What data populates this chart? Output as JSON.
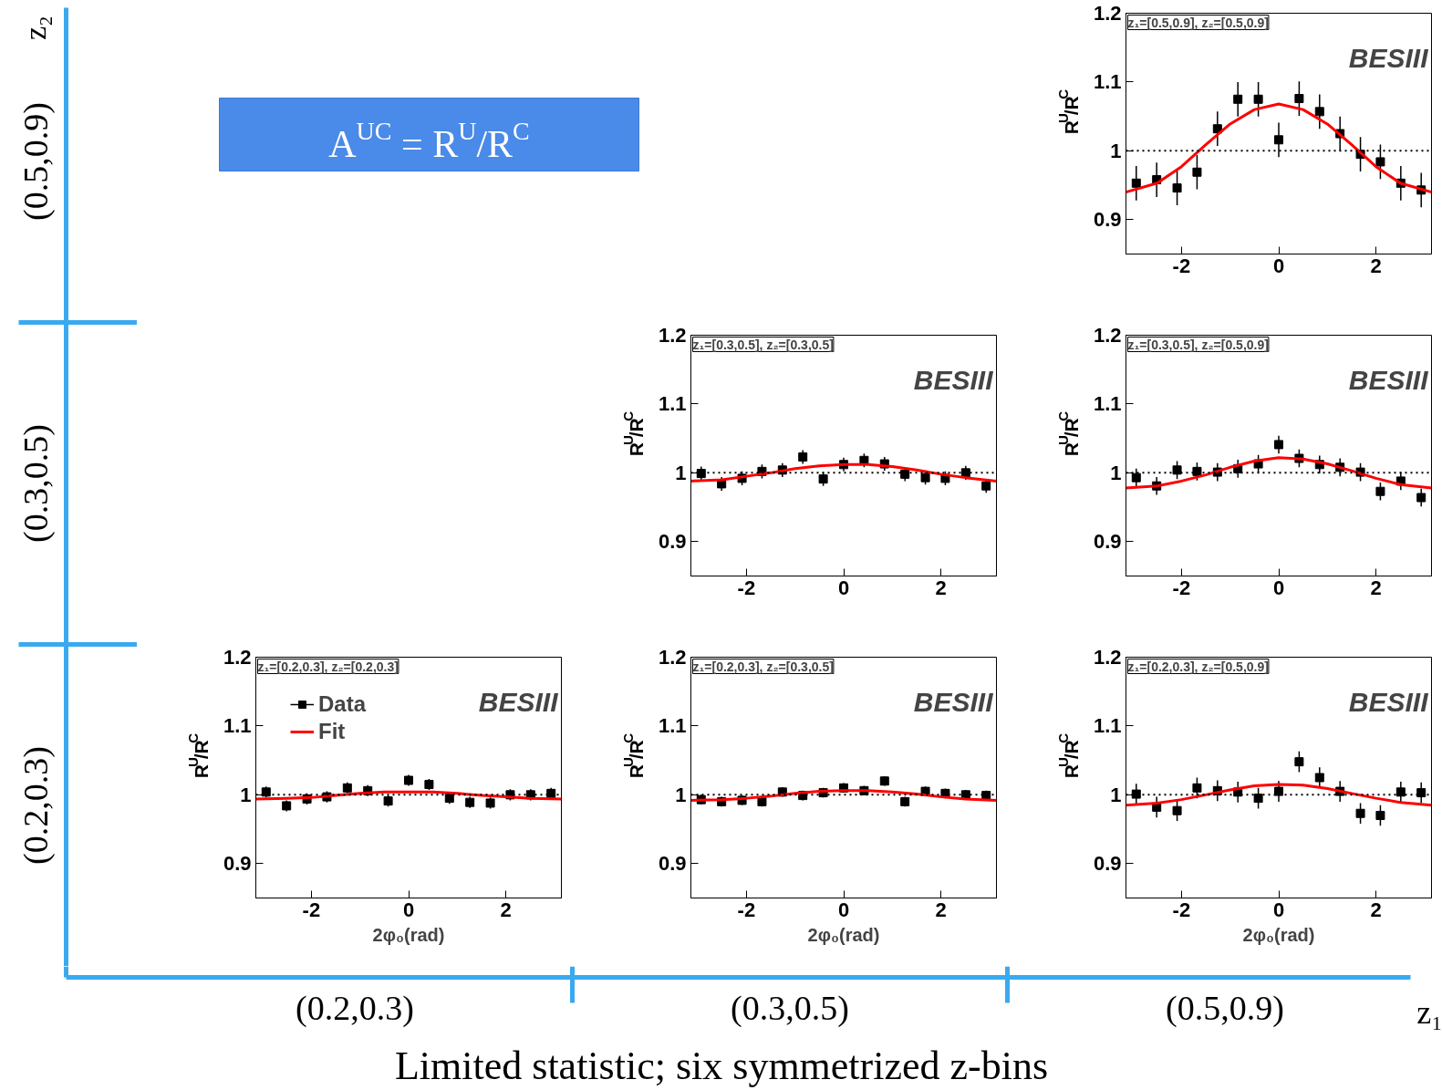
{
  "chart_data": [
    {
      "type": "scatter",
      "title": "z₁=[0.5,0.9], z₂=[0.5,0.9]",
      "ylabel": "R$^{U}$/R$^{C}$",
      "xlim": [
        -3.1416,
        3.1416
      ],
      "ylim": [
        0.85,
        1.2
      ],
      "xticks": [
        -2,
        0,
        2
      ],
      "yticks": [
        0.9,
        1,
        1.1,
        1.2
      ],
      "annotations": [
        "BESIII"
      ],
      "ref_lines": [
        {
          "axis": "y",
          "value": 1,
          "color": "#000000",
          "line_style": "dotted"
        }
      ],
      "series": [
        {
          "type": "scatter",
          "marker": "square",
          "color": "#000000",
          "x": [
            -2.93,
            -2.51,
            -2.09,
            -1.68,
            -1.26,
            -0.84,
            -0.42,
            0,
            0.42,
            0.84,
            1.26,
            1.68,
            2.09,
            2.51,
            2.93
          ],
          "values": [
            0.953,
            0.958,
            0.946,
            0.969,
            1.032,
            1.075,
            1.075,
            1.016,
            1.076,
            1.057,
            1.025,
            0.995,
            0.984,
            0.953,
            0.943
          ],
          "errors": [
            0.025,
            0.025,
            0.025,
            0.025,
            0.025,
            0.025,
            0.025,
            0.025,
            0.025,
            0.025,
            0.025,
            0.025,
            0.025,
            0.025,
            0.025
          ]
        },
        {
          "type": "line",
          "color": "#ff0000",
          "x": [
            -3.1416,
            -2.5,
            -2,
            -1.5,
            -1,
            -0.5,
            0,
            0.5,
            1,
            1.5,
            2,
            2.5,
            3.1416
          ],
          "values": [
            0.94,
            0.953,
            0.977,
            1.009,
            1.039,
            1.06,
            1.068,
            1.06,
            1.039,
            1.009,
            0.977,
            0.953,
            0.94
          ]
        }
      ]
    },
    {
      "type": "scatter",
      "title": "z₁=[0.3,0.5], z₂=[0.3,0.5]",
      "ylabel": "R$^{U}$/R$^{C}$",
      "xlim": [
        -3.1416,
        3.1416
      ],
      "ylim": [
        0.85,
        1.2
      ],
      "xticks": [
        -2,
        0,
        2
      ],
      "yticks": [
        0.9,
        1,
        1.1,
        1.2
      ],
      "annotations": [
        "BESIII"
      ],
      "ref_lines": [
        {
          "axis": "y",
          "value": 1,
          "color": "#000000",
          "line_style": "dotted"
        }
      ],
      "series": [
        {
          "type": "scatter",
          "marker": "square",
          "color": "#000000",
          "x": [
            -2.93,
            -2.51,
            -2.09,
            -1.68,
            -1.26,
            -0.84,
            -0.42,
            0,
            0.42,
            0.84,
            1.26,
            1.68,
            2.09,
            2.51,
            2.93
          ],
          "values": [
            0.999,
            0.984,
            0.992,
            1.002,
            1.004,
            1.023,
            0.991,
            1.012,
            1.018,
            1.013,
            0.998,
            0.993,
            0.992,
            1.0,
            0.981
          ],
          "errors": [
            0.01,
            0.01,
            0.01,
            0.01,
            0.01,
            0.01,
            0.01,
            0.01,
            0.01,
            0.01,
            0.01,
            0.01,
            0.01,
            0.01,
            0.01
          ]
        },
        {
          "type": "line",
          "color": "#ff0000",
          "x": [
            -3.1416,
            -2.5,
            -2,
            -1.5,
            -1,
            -0.5,
            0,
            0.5,
            1,
            1.5,
            2,
            2.5,
            3.1416
          ],
          "values": [
            0.988,
            0.99,
            0.995,
            1.0,
            1.006,
            1.01,
            1.012,
            1.012,
            1.009,
            1.004,
            0.998,
            0.993,
            0.988
          ]
        }
      ]
    },
    {
      "type": "scatter",
      "title": "z₁=[0.3,0.5], z₂=[0.5,0.9]",
      "ylabel": "R$^{U}$/R$^{C}$",
      "xlim": [
        -3.1416,
        3.1416
      ],
      "ylim": [
        0.85,
        1.2
      ],
      "xticks": [
        -2,
        0,
        2
      ],
      "yticks": [
        0.9,
        1,
        1.1,
        1.2
      ],
      "annotations": [
        "BESIII"
      ],
      "ref_lines": [
        {
          "axis": "y",
          "value": 1,
          "color": "#000000",
          "line_style": "dotted"
        }
      ],
      "series": [
        {
          "type": "scatter",
          "marker": "square",
          "color": "#000000",
          "x": [
            -2.93,
            -2.51,
            -2.09,
            -1.68,
            -1.26,
            -0.84,
            -0.42,
            0,
            0.42,
            0.84,
            1.26,
            1.68,
            2.09,
            2.51,
            2.93
          ],
          "values": [
            0.993,
            0.981,
            1.004,
            1.002,
            1.001,
            1.006,
            1.013,
            1.041,
            1.021,
            1.012,
            1.008,
            1.001,
            0.973,
            0.988,
            0.964
          ],
          "errors": [
            0.013,
            0.013,
            0.013,
            0.013,
            0.013,
            0.013,
            0.013,
            0.013,
            0.013,
            0.013,
            0.013,
            0.013,
            0.013,
            0.013,
            0.013
          ]
        },
        {
          "type": "line",
          "color": "#ff0000",
          "x": [
            -3.1416,
            -2.5,
            -2,
            -1.5,
            -1,
            -0.5,
            0,
            0.5,
            1,
            1.5,
            2,
            2.5,
            3.1416
          ],
          "values": [
            0.978,
            0.981,
            0.988,
            0.997,
            1.008,
            1.017,
            1.022,
            1.02,
            1.013,
            1.003,
            0.992,
            0.983,
            0.978
          ]
        }
      ]
    },
    {
      "type": "scatter",
      "title": "z₁=[0.2,0.3], z₂=[0.2,0.3]",
      "xlabel": "2φ₀(rad)",
      "ylabel": "R$^{U}$/R$^{C}$",
      "xlim": [
        -3.1416,
        3.1416
      ],
      "ylim": [
        0.85,
        1.2
      ],
      "xticks": [
        -2,
        0,
        2
      ],
      "yticks": [
        0.9,
        1,
        1.1,
        1.2
      ],
      "legend": "top left",
      "annotations": [
        "BESIII"
      ],
      "ref_lines": [
        {
          "axis": "y",
          "value": 1,
          "color": "#000000",
          "line_style": "dotted"
        }
      ],
      "series": [
        {
          "name": "Data",
          "type": "scatter",
          "marker": "square",
          "color": "#000000",
          "x": [
            -2.93,
            -2.51,
            -2.09,
            -1.68,
            -1.26,
            -0.84,
            -0.42,
            0,
            0.42,
            0.84,
            1.26,
            1.68,
            2.09,
            2.51,
            2.93
          ],
          "values": [
            1.004,
            0.984,
            0.994,
            0.997,
            1.01,
            1.006,
            0.991,
            1.021,
            1.015,
            0.995,
            0.989,
            0.988,
            1.0,
            1.0,
            1.002
          ],
          "errors": [
            0.008,
            0.008,
            0.008,
            0.008,
            0.008,
            0.008,
            0.008,
            0.008,
            0.008,
            0.008,
            0.008,
            0.008,
            0.008,
            0.008,
            0.008
          ]
        },
        {
          "name": "Fit",
          "type": "line",
          "color": "#ff0000",
          "x": [
            -3.1416,
            -2.5,
            -2,
            -1.5,
            -1,
            -0.5,
            0,
            0.5,
            1,
            1.5,
            2,
            2.5,
            3.1416
          ],
          "values": [
            0.994,
            0.995,
            0.996,
            0.999,
            1.002,
            1.004,
            1.004,
            1.004,
            1.002,
            0.999,
            0.997,
            0.995,
            0.994
          ]
        }
      ]
    },
    {
      "type": "scatter",
      "title": "z₁=[0.2,0.3], z₂=[0.3,0.5]",
      "xlabel": "2φ₀(rad)",
      "ylabel": "R$^{U}$/R$^{C}$",
      "xlim": [
        -3.1416,
        3.1416
      ],
      "ylim": [
        0.85,
        1.2
      ],
      "xticks": [
        -2,
        0,
        2
      ],
      "yticks": [
        0.9,
        1,
        1.1,
        1.2
      ],
      "annotations": [
        "BESIII"
      ],
      "ref_lines": [
        {
          "axis": "y",
          "value": 1,
          "color": "#000000",
          "line_style": "dotted"
        }
      ],
      "series": [
        {
          "type": "scatter",
          "marker": "square",
          "color": "#000000",
          "x": [
            -2.93,
            -2.51,
            -2.09,
            -1.68,
            -1.26,
            -0.84,
            -0.42,
            0,
            0.42,
            0.84,
            1.26,
            1.68,
            2.09,
            2.51,
            2.93
          ],
          "values": [
            0.993,
            0.99,
            0.992,
            0.99,
            1.004,
            0.999,
            1.003,
            1.01,
            1.006,
            1.02,
            0.99,
            1.005,
            1.002,
            1.0,
            0.999
          ],
          "errors": [
            0.007,
            0.007,
            0.007,
            0.007,
            0.007,
            0.007,
            0.007,
            0.007,
            0.007,
            0.007,
            0.007,
            0.007,
            0.007,
            0.007,
            0.007
          ]
        },
        {
          "type": "line",
          "color": "#ff0000",
          "x": [
            -3.1416,
            -2.5,
            -2,
            -1.5,
            -1,
            -0.5,
            0,
            0.5,
            1,
            1.5,
            2,
            2.5,
            3.1416
          ],
          "values": [
            0.992,
            0.993,
            0.995,
            0.998,
            1.002,
            1.005,
            1.006,
            1.006,
            1.004,
            1.001,
            0.997,
            0.994,
            0.992
          ]
        }
      ]
    },
    {
      "type": "scatter",
      "title": "z₁=[0.2,0.3], z₂=[0.5,0.9]",
      "xlabel": "2φ₀(rad)",
      "ylabel": "R$^{U}$/R$^{C}$",
      "xlim": [
        -3.1416,
        3.1416
      ],
      "ylim": [
        0.85,
        1.2
      ],
      "xticks": [
        -2,
        0,
        2
      ],
      "yticks": [
        0.9,
        1,
        1.1,
        1.2
      ],
      "annotations": [
        "BESIII"
      ],
      "ref_lines": [
        {
          "axis": "y",
          "value": 1,
          "color": "#000000",
          "line_style": "dotted"
        }
      ],
      "series": [
        {
          "type": "scatter",
          "marker": "square",
          "color": "#000000",
          "x": [
            -2.93,
            -2.51,
            -2.09,
            -1.68,
            -1.26,
            -0.84,
            -0.42,
            0,
            0.42,
            0.84,
            1.26,
            1.68,
            2.09,
            2.51,
            2.93
          ],
          "values": [
            1.001,
            0.982,
            0.977,
            1.01,
            1.006,
            1.004,
            0.995,
            1.005,
            1.048,
            1.025,
            1.005,
            0.973,
            0.97,
            1.004,
            1.003
          ],
          "errors": [
            0.015,
            0.015,
            0.015,
            0.015,
            0.015,
            0.015,
            0.015,
            0.015,
            0.015,
            0.015,
            0.015,
            0.015,
            0.015,
            0.015,
            0.015
          ]
        },
        {
          "type": "line",
          "color": "#ff0000",
          "x": [
            -3.1416,
            -2.5,
            -2,
            -1.5,
            -1,
            -0.5,
            0,
            0.5,
            1,
            1.5,
            2,
            2.5,
            3.1416
          ],
          "values": [
            0.985,
            0.988,
            0.993,
            1.0,
            1.007,
            1.013,
            1.015,
            1.014,
            1.009,
            1.002,
            0.995,
            0.989,
            0.985
          ]
        }
      ]
    },
    {
      "type": "other",
      "title": "A$^{UC}$ = R$^{U}$/R$^{C}$",
      "xlabel": "z₁",
      "ylabel": "z₂",
      "categories": [
        "(0.2,0.3)",
        "(0.3,0.5)",
        "(0.5,0.9)"
      ],
      "y_categories": [
        "(0.5,0.9)",
        "(0.3,0.5)",
        "(0.2,0.3)"
      ],
      "annotations": [
        "Limited statistic; six symmetrized z-bins"
      ]
    }
  ]
}
